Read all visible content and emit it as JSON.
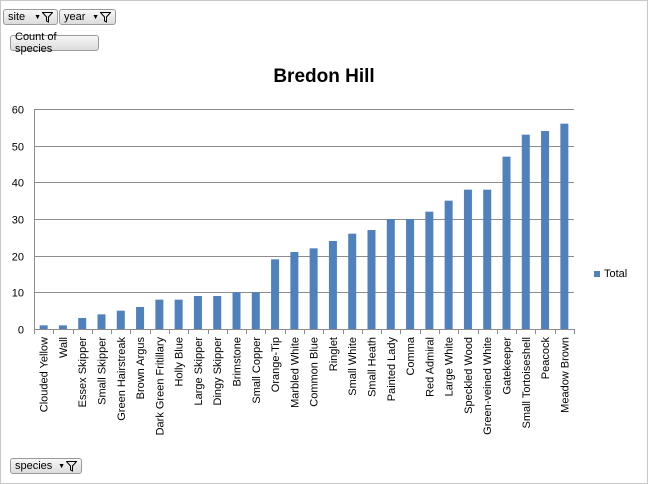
{
  "pivot": {
    "filter_site": "site",
    "filter_year": "year",
    "value_field": "Count of species",
    "axis_field": "species",
    "filter_icon": "filter-funnel-icon",
    "dropdown_icon": "dropdown-arrow-icon"
  },
  "colors": {
    "bar": "#4f81bd",
    "grid": "#8c8c8c",
    "axis": "#8c8c8c"
  },
  "chart_data": {
    "type": "bar",
    "title": "Bredon Hill",
    "xlabel": "",
    "ylabel": "",
    "ylim": [
      0,
      60
    ],
    "yticks": [
      0,
      10,
      20,
      30,
      40,
      50,
      60
    ],
    "grid": true,
    "legend_position": "right",
    "categories": [
      "Clouded Yellow",
      "Wall",
      "Essex Skipper",
      "Small Skipper",
      "Green Hairstreak",
      "Brown Argus",
      "Dark Green Fritillary",
      "Holly Blue",
      "Large Skipper",
      "Dingy Skipper",
      "Brimstone",
      "Small Copper",
      "Orange-Tip",
      "Marbled White",
      "Common Blue",
      "Ringlet",
      "Small White",
      "Small Heath",
      "Painted Lady",
      "Comma",
      "Red Admiral",
      "Large White",
      "Speckled Wood",
      "Green-veined White",
      "Gatekeeper",
      "Small Tortoiseshell",
      "Peacock",
      "Meadow Brown"
    ],
    "series": [
      {
        "name": "Total",
        "values": [
          1,
          1,
          3,
          4,
          5,
          6,
          8,
          8,
          9,
          9,
          10,
          10,
          19,
          21,
          22,
          24,
          26,
          27,
          30,
          30,
          32,
          35,
          38,
          38,
          47,
          53,
          54,
          56
        ]
      }
    ]
  }
}
